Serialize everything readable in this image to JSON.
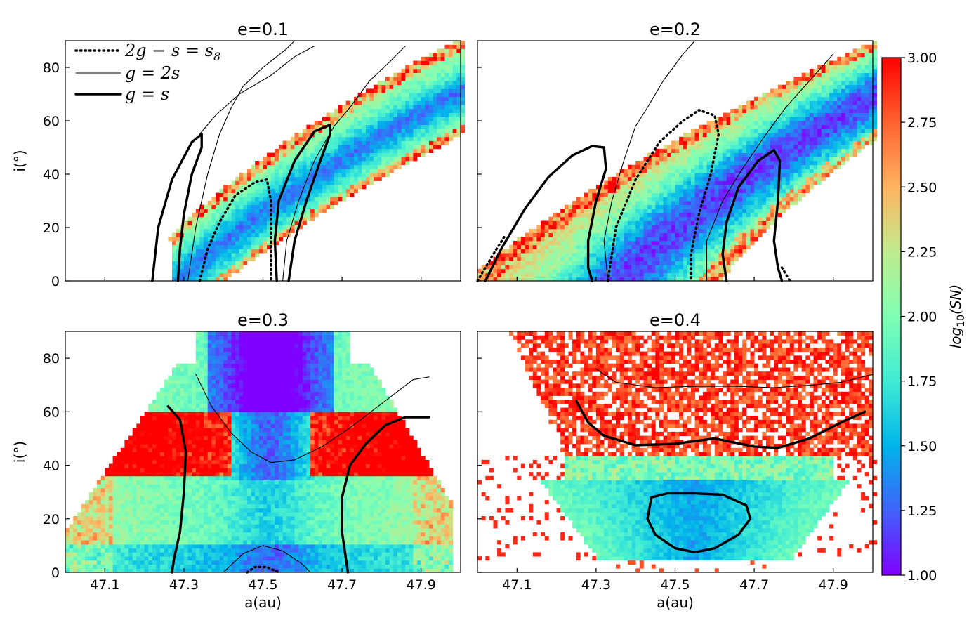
{
  "chart_data": {
    "type": "heatmap",
    "x_domain": [
      47.0,
      48.0
    ],
    "y_domain": [
      0,
      90
    ],
    "x_ticks": [
      47.1,
      47.3,
      47.5,
      47.7,
      47.9
    ],
    "x_tick_labels": [
      "47.1",
      "47.3",
      "47.5",
      "47.7",
      "47.9"
    ],
    "y_ticks": [
      0,
      20,
      40,
      60,
      80
    ],
    "y_tick_labels": [
      "0",
      "20",
      "40",
      "60",
      "80"
    ],
    "xlabel": "a(au)",
    "ylabel": "i(°)",
    "colorbar": {
      "label": "log10(SN)",
      "label_base": "log",
      "label_sub": "10",
      "label_rest": "(SN)",
      "range": [
        1.0,
        3.0
      ],
      "ticks": [
        1.0,
        1.25,
        1.5,
        1.75,
        2.0,
        2.25,
        2.5,
        2.75,
        3.0
      ],
      "tick_labels": [
        "1.00",
        "1.25",
        "1.50",
        "1.75",
        "2.00",
        "2.25",
        "2.50",
        "2.75",
        "3.00"
      ],
      "colormap": "rainbow"
    },
    "legend": {
      "placement": "top-left of first panel",
      "entries": [
        {
          "label": "2g − s = s8",
          "main": "2g − s = s",
          "sub": "8",
          "style": "dotted-thick"
        },
        {
          "label": "g = 2s",
          "main": "g = 2s",
          "sub": "",
          "style": "solid-thin"
        },
        {
          "label": "g = s",
          "main": "g = s",
          "sub": "",
          "style": "solid-thick"
        }
      ]
    },
    "panels": [
      {
        "title": "e=0.1",
        "show_x_labels": false,
        "show_y_labels": true,
        "curves": [
          {
            "style": "solid-thick",
            "points": [
              [
                47.22,
                0
              ],
              [
                47.235,
                20
              ],
              [
                47.27,
                38
              ],
              [
                47.32,
                52
              ],
              [
                47.345,
                55
              ],
              [
                47.345,
                50
              ],
              [
                47.32,
                40
              ],
              [
                47.3,
                25
              ],
              [
                47.29,
                12
              ],
              [
                47.285,
                0
              ]
            ]
          },
          {
            "style": "solid-thick",
            "points": [
              [
                47.535,
                0
              ],
              [
                47.53,
                15
              ],
              [
                47.54,
                30
              ],
              [
                47.58,
                45
              ],
              [
                47.63,
                56
              ],
              [
                47.67,
                58.5
              ],
              [
                47.67,
                55
              ],
              [
                47.645,
                45
              ],
              [
                47.61,
                30
              ],
              [
                47.58,
                15
              ],
              [
                47.565,
                0
              ]
            ]
          },
          {
            "style": "solid-thin",
            "points": [
              [
                47.31,
                0
              ],
              [
                47.33,
                20
              ],
              [
                47.36,
                40
              ],
              [
                47.39,
                55
              ],
              [
                47.42,
                65
              ],
              [
                47.45,
                73
              ],
              [
                47.5,
                80
              ],
              [
                47.56,
                87
              ],
              [
                47.58,
                90
              ]
            ]
          },
          {
            "style": "solid-thin",
            "points": [
              [
                47.55,
                0
              ],
              [
                47.56,
                15
              ],
              [
                47.59,
                30
              ],
              [
                47.63,
                45
              ],
              [
                47.68,
                58
              ],
              [
                47.72,
                65
              ],
              [
                47.77,
                75
              ],
              [
                47.82,
                82
              ],
              [
                47.86,
                88
              ]
            ]
          },
          {
            "style": "solid-thin",
            "points": [
              [
                47.34,
                55
              ],
              [
                47.38,
                62
              ],
              [
                47.44,
                70
              ],
              [
                47.52,
                77
              ],
              [
                47.58,
                84
              ],
              [
                47.63,
                88
              ]
            ]
          },
          {
            "style": "dotted-thick",
            "points": [
              [
                47.34,
                0
              ],
              [
                47.36,
                12
              ],
              [
                47.39,
                22
              ],
              [
                47.43,
                32
              ],
              [
                47.48,
                37
              ],
              [
                47.51,
                38
              ],
              [
                47.52,
                30
              ],
              [
                47.52,
                15
              ],
              [
                47.52,
                0
              ]
            ]
          }
        ]
      },
      {
        "title": "e=0.2",
        "show_x_labels": false,
        "show_y_labels": false,
        "curves": [
          {
            "style": "solid-thick",
            "points": [
              [
                47.02,
                0
              ],
              [
                47.06,
                12
              ],
              [
                47.12,
                27
              ],
              [
                47.18,
                39
              ],
              [
                47.24,
                47
              ],
              [
                47.29,
                50.5
              ],
              [
                47.32,
                50
              ],
              [
                47.325,
                42
              ],
              [
                47.3,
                30
              ],
              [
                47.28,
                15
              ],
              [
                47.28,
                5
              ],
              [
                47.29,
                0
              ]
            ]
          },
          {
            "style": "solid-thick",
            "points": [
              [
                47.63,
                0
              ],
              [
                47.62,
                10
              ],
              [
                47.63,
                22
              ],
              [
                47.66,
                35
              ],
              [
                47.71,
                45
              ],
              [
                47.75,
                49
              ],
              [
                47.765,
                45
              ],
              [
                47.76,
                30
              ],
              [
                47.75,
                15
              ],
              [
                47.76,
                5
              ],
              [
                47.77,
                0
              ]
            ]
          },
          {
            "style": "solid-thin",
            "points": [
              [
                47.33,
                0
              ],
              [
                47.32,
                15
              ],
              [
                47.34,
                30
              ],
              [
                47.37,
                45
              ],
              [
                47.4,
                58
              ],
              [
                47.43,
                65
              ],
              [
                47.47,
                75
              ],
              [
                47.52,
                85
              ],
              [
                47.55,
                90
              ]
            ]
          },
          {
            "style": "solid-thin",
            "points": [
              [
                47.58,
                0
              ],
              [
                47.58,
                15
              ],
              [
                47.62,
                30
              ],
              [
                47.67,
                42
              ],
              [
                47.73,
                55
              ],
              [
                47.78,
                65
              ],
              [
                47.84,
                75
              ],
              [
                47.9,
                85
              ]
            ]
          },
          {
            "style": "dotted-thick",
            "points": [
              [
                47.33,
                0
              ],
              [
                47.35,
                20
              ],
              [
                47.4,
                38
              ],
              [
                47.46,
                52
              ],
              [
                47.52,
                60
              ],
              [
                47.56,
                64
              ],
              [
                47.6,
                62
              ],
              [
                47.61,
                55
              ],
              [
                47.59,
                40
              ],
              [
                47.56,
                25
              ],
              [
                47.54,
                10
              ],
              [
                47.54,
                0
              ]
            ]
          },
          {
            "style": "dotted-thick",
            "points": [
              [
                47.0,
                0
              ],
              [
                47.04,
                10
              ],
              [
                47.07,
                17
              ]
            ]
          },
          {
            "style": "dotted-thick",
            "points": [
              [
                47.77,
                5
              ],
              [
                47.79,
                0
              ]
            ]
          }
        ]
      },
      {
        "title": "e=0.3",
        "show_x_labels": true,
        "show_y_labels": true,
        "curves": [
          {
            "style": "solid-thick",
            "points": [
              [
                47.26,
                62
              ],
              [
                47.29,
                57
              ],
              [
                47.305,
                45
              ],
              [
                47.3,
                30
              ],
              [
                47.29,
                15
              ],
              [
                47.275,
                5
              ],
              [
                47.27,
                0
              ]
            ]
          },
          {
            "style": "solid-thick",
            "points": [
              [
                47.92,
                58
              ],
              [
                47.86,
                58
              ],
              [
                47.81,
                55
              ],
              [
                47.76,
                48
              ],
              [
                47.72,
                40
              ],
              [
                47.7,
                28
              ],
              [
                47.7,
                15
              ],
              [
                47.715,
                0
              ]
            ]
          },
          {
            "style": "solid-thin",
            "points": [
              [
                47.33,
                74
              ],
              [
                47.37,
                62
              ],
              [
                47.42,
                52
              ],
              [
                47.47,
                45
              ],
              [
                47.52,
                41
              ],
              [
                47.58,
                42
              ],
              [
                47.65,
                47
              ],
              [
                47.72,
                54
              ],
              [
                47.8,
                63
              ],
              [
                47.88,
                72
              ],
              [
                47.92,
                73
              ]
            ]
          },
          {
            "style": "solid-thin",
            "points": [
              [
                47.4,
                0
              ],
              [
                47.45,
                7
              ],
              [
                47.5,
                10
              ],
              [
                47.55,
                8
              ],
              [
                47.6,
                3
              ],
              [
                47.62,
                0
              ]
            ]
          },
          {
            "style": "dotted-thick",
            "points": [
              [
                47.46,
                0
              ],
              [
                47.48,
                2
              ],
              [
                47.51,
                2
              ],
              [
                47.54,
                0
              ]
            ]
          }
        ]
      },
      {
        "title": "e=0.4",
        "show_x_labels": true,
        "show_y_labels": false,
        "curves": [
          {
            "style": "solid-thick",
            "points": [
              [
                47.25,
                64
              ],
              [
                47.28,
                56
              ],
              [
                47.32,
                51
              ],
              [
                47.4,
                47.5
              ],
              [
                47.5,
                48
              ],
              [
                47.6,
                50
              ],
              [
                47.7,
                47
              ],
              [
                47.76,
                46.5
              ],
              [
                47.84,
                50
              ],
              [
                47.92,
                56
              ],
              [
                47.98,
                60
              ]
            ]
          },
          {
            "style": "solid-thin",
            "points": [
              [
                47.3,
                76
              ],
              [
                47.35,
                71
              ],
              [
                47.45,
                69
              ],
              [
                47.55,
                69.5
              ],
              [
                47.65,
                69.5
              ],
              [
                47.75,
                69
              ],
              [
                47.85,
                70
              ],
              [
                47.92,
                71
              ],
              [
                48.0,
                74
              ]
            ]
          },
          {
            "style": "solid-thick",
            "points": [
              [
                47.44,
                28
              ],
              [
                47.48,
                29.5
              ],
              [
                47.55,
                29.5
              ],
              [
                47.62,
                29
              ],
              [
                47.68,
                25
              ],
              [
                47.69,
                20
              ],
              [
                47.66,
                14
              ],
              [
                47.6,
                9
              ],
              [
                47.55,
                7.5
              ],
              [
                47.5,
                9
              ],
              [
                47.45,
                14
              ],
              [
                47.43,
                20
              ],
              [
                47.44,
                28
              ]
            ]
          }
        ]
      }
    ]
  }
}
